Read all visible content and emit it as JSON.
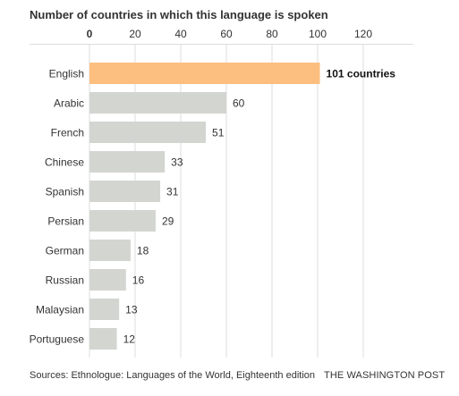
{
  "chart_data": {
    "type": "bar",
    "orientation": "horizontal",
    "title": "Number of countries in which this language is spoken",
    "categories": [
      "English",
      "Arabic",
      "French",
      "Chinese",
      "Spanish",
      "Persian",
      "German",
      "Russian",
      "Malaysian",
      "Portuguese"
    ],
    "values": [
      101,
      60,
      51,
      33,
      31,
      29,
      18,
      16,
      13,
      12
    ],
    "value_labels": [
      "101 countries",
      "60",
      "51",
      "33",
      "31",
      "29",
      "18",
      "16",
      "13",
      "12"
    ],
    "x_ticks": [
      0,
      20,
      40,
      60,
      80,
      100,
      120
    ],
    "xlim": [
      0,
      120
    ],
    "tick_position": "top",
    "grid": true,
    "colors": {
      "highlight": "#fcbf80",
      "bar": "#d3d5d1",
      "grid": "#dddddd",
      "text": "#333333"
    },
    "highlight_category": "English"
  },
  "source": {
    "text": "Sources: Ethnologue: Languages of the World, Eighteenth edition",
    "credit": "THE WASHINGTON POST"
  }
}
